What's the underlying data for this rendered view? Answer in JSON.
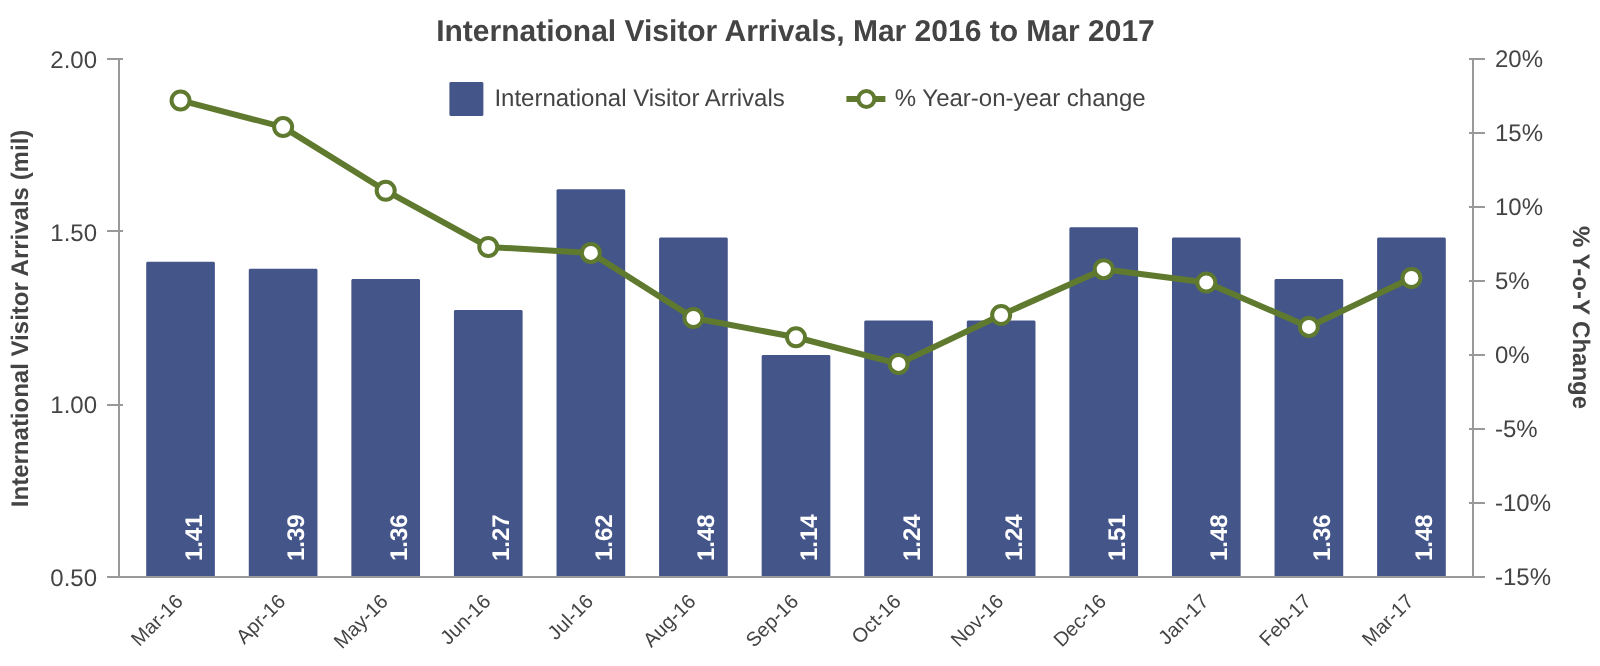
{
  "chart_data": {
    "type": "bar",
    "title": "International Visitor Arrivals, Mar 2016 to Mar 2017",
    "ylabel": "International Visitor Arrivals (mil)",
    "y2label": "% Y-o-Y Change",
    "categories": [
      "Mar-16",
      "Apr-16",
      "May-16",
      "Jun-16",
      "Jul-16",
      "Aug-16",
      "Sep-16",
      "Oct-16",
      "Nov-16",
      "Dec-16",
      "Jan-17",
      "Feb-17",
      "Mar-17"
    ],
    "series": [
      {
        "name": "International Visitor Arrivals",
        "color": "#44558a",
        "values": [
          1.41,
          1.39,
          1.36,
          1.27,
          1.62,
          1.48,
          1.14,
          1.24,
          1.24,
          1.51,
          1.48,
          1.36,
          1.48
        ],
        "data_labels": true
      },
      {
        "name": "% Year-on-year change",
        "type": "line",
        "axis": "y2",
        "color": "#5f7a2e",
        "marker": "circle",
        "values": [
          17.2,
          15.4,
          11.1,
          7.3,
          6.9,
          2.5,
          1.2,
          -0.6,
          2.7,
          5.8,
          4.9,
          1.9,
          5.2
        ]
      }
    ],
    "ylim": [
      0.5,
      2.0
    ],
    "yticks": [
      {
        "value": 0.5,
        "label": "0.50"
      },
      {
        "value": 1.0,
        "label": "1.00"
      },
      {
        "value": 1.5,
        "label": "1.50"
      },
      {
        "value": 2.0,
        "label": "2.00"
      }
    ],
    "y2lim": [
      -15,
      20
    ],
    "y2ticks": [
      {
        "value": -15,
        "label": "-15%"
      },
      {
        "value": -10,
        "label": "-10%"
      },
      {
        "value": -5,
        "label": "-5%"
      },
      {
        "value": 0,
        "label": "0%"
      },
      {
        "value": 5,
        "label": "5%"
      },
      {
        "value": 10,
        "label": "10%"
      },
      {
        "value": 15,
        "label": "15%"
      },
      {
        "value": 20,
        "label": "20%"
      }
    ],
    "legend": "top",
    "grid": false
  }
}
